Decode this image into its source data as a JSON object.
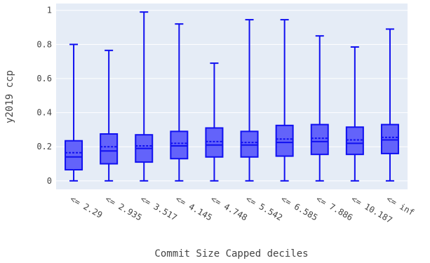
{
  "chart_data": {
    "type": "box",
    "xlabel": "Commit Size Capped deciles",
    "ylabel": "y2019 ccp",
    "ylim": [
      -0.05,
      1.04
    ],
    "yticks": [
      0,
      0.2,
      0.4,
      0.6,
      0.8,
      1
    ],
    "ytick_labels": [
      "0",
      "0.2",
      "0.4",
      "0.6",
      "0.8",
      "1"
    ],
    "grid": true,
    "box_fill": "#6363fa",
    "box_line": "#1010f0",
    "plot_bg": "#e5ecf6",
    "categories": [
      "<= 2.29",
      "<= 2.935",
      "<= 3.517",
      "<= 4.145",
      "<= 4.748",
      "<= 5.542",
      "<= 6.585",
      "<= 7.886",
      "<= 10.187",
      "<= inf"
    ],
    "boxes": [
      {
        "min": 0.0,
        "q1": 0.065,
        "median": 0.14,
        "mean": 0.165,
        "q3": 0.235,
        "max": 0.8
      },
      {
        "min": 0.0,
        "q1": 0.1,
        "median": 0.175,
        "mean": 0.2,
        "q3": 0.275,
        "max": 0.765
      },
      {
        "min": 0.0,
        "q1": 0.11,
        "median": 0.19,
        "mean": 0.205,
        "q3": 0.27,
        "max": 0.99
      },
      {
        "min": 0.0,
        "q1": 0.13,
        "median": 0.205,
        "mean": 0.22,
        "q3": 0.29,
        "max": 0.92
      },
      {
        "min": 0.0,
        "q1": 0.14,
        "median": 0.21,
        "mean": 0.23,
        "q3": 0.31,
        "max": 0.69
      },
      {
        "min": 0.0,
        "q1": 0.14,
        "median": 0.21,
        "mean": 0.225,
        "q3": 0.29,
        "max": 0.945
      },
      {
        "min": 0.0,
        "q1": 0.145,
        "median": 0.225,
        "mean": 0.245,
        "q3": 0.325,
        "max": 0.945
      },
      {
        "min": 0.0,
        "q1": 0.155,
        "median": 0.23,
        "mean": 0.25,
        "q3": 0.33,
        "max": 0.85
      },
      {
        "min": 0.0,
        "q1": 0.155,
        "median": 0.22,
        "mean": 0.24,
        "q3": 0.315,
        "max": 0.785
      },
      {
        "min": 0.0,
        "q1": 0.16,
        "median": 0.24,
        "mean": 0.255,
        "q3": 0.33,
        "max": 0.89
      }
    ]
  }
}
